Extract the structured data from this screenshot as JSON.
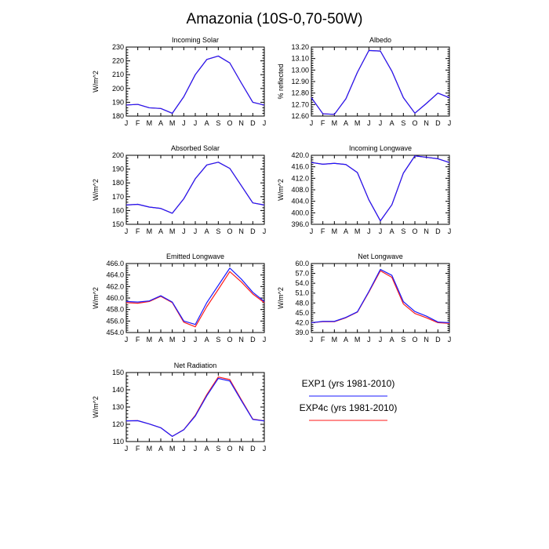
{
  "figure_title": "Amazonia (10S-0,70-50W)",
  "colors": {
    "exp1": "#1a1aff",
    "exp4c": "#ff1a1a",
    "axis": "#000000"
  },
  "legend": [
    {
      "label": "EXP1 (yrs 1981-2010)",
      "color": "#1a1aff"
    },
    {
      "label": "EXP4c (yrs 1981-2010)",
      "color": "#ff1a1a"
    }
  ],
  "chart_data": [
    {
      "type": "line",
      "title": "Incoming Solar",
      "ylabel": "W/m^2",
      "x": [
        "J",
        "F",
        "M",
        "A",
        "M",
        "J",
        "J",
        "A",
        "S",
        "O",
        "N",
        "D",
        "J"
      ],
      "ylim": [
        180,
        230
      ],
      "yticks": [
        "180",
        "190",
        "200",
        "210",
        "220",
        "230"
      ],
      "series": [
        {
          "name": "EXP1 (yrs 1981-2010)",
          "values": [
            188,
            188.5,
            186,
            185.5,
            182,
            194,
            210,
            221,
            223.5,
            218.5,
            204,
            190,
            188
          ]
        },
        {
          "name": "EXP4c (yrs 1981-2010)",
          "values": [
            188,
            188.5,
            186,
            185.5,
            182,
            194,
            210,
            221,
            223.5,
            218.5,
            204,
            190,
            188
          ]
        }
      ]
    },
    {
      "type": "line",
      "title": "Albedo",
      "ylabel": "% reflected",
      "x": [
        "J",
        "F",
        "M",
        "A",
        "M",
        "J",
        "J",
        "A",
        "S",
        "O",
        "N",
        "D",
        "J"
      ],
      "ylim": [
        12.6,
        13.2
      ],
      "yticks": [
        "12.60",
        "12.70",
        "12.80",
        "12.90",
        "13.00",
        "13.10",
        "13.20"
      ],
      "series": [
        {
          "name": "EXP1 (yrs 1981-2010)",
          "values": [
            12.76,
            12.62,
            12.615,
            12.75,
            12.98,
            13.17,
            13.165,
            12.99,
            12.76,
            12.625,
            12.71,
            12.8,
            12.76
          ]
        },
        {
          "name": "EXP4c (yrs 1981-2010)",
          "values": [
            12.76,
            12.62,
            12.615,
            12.75,
            12.98,
            13.17,
            13.165,
            12.99,
            12.76,
            12.625,
            12.71,
            12.8,
            12.76
          ]
        }
      ]
    },
    {
      "type": "line",
      "title": "Absorbed Solar",
      "ylabel": "W/m^2",
      "x": [
        "J",
        "F",
        "M",
        "A",
        "M",
        "J",
        "J",
        "A",
        "S",
        "O",
        "N",
        "D",
        "J"
      ],
      "ylim": [
        150,
        200
      ],
      "yticks": [
        "150",
        "160",
        "170",
        "180",
        "190",
        "200"
      ],
      "series": [
        {
          "name": "EXP1 (yrs 1981-2010)",
          "values": [
            164,
            164.5,
            162.5,
            161.5,
            158,
            168.5,
            183,
            193,
            195,
            190.5,
            178,
            165.5,
            164
          ]
        },
        {
          "name": "EXP4c (yrs 1981-2010)",
          "values": [
            164,
            164.5,
            162.5,
            161.5,
            158,
            168.5,
            183,
            193,
            195,
            190.5,
            178,
            165.5,
            164
          ]
        }
      ]
    },
    {
      "type": "line",
      "title": "Incoming Longwave",
      "ylabel": "W/m^2",
      "x": [
        "J",
        "F",
        "M",
        "A",
        "M",
        "J",
        "J",
        "A",
        "S",
        "O",
        "N",
        "D",
        "J"
      ],
      "ylim": [
        396,
        420
      ],
      "yticks": [
        "396.0",
        "400.0",
        "404.0",
        "408.0",
        "412.0",
        "416.0",
        "420.0"
      ],
      "series": [
        {
          "name": "EXP1 (yrs 1981-2010)",
          "values": [
            417.5,
            416.9,
            417.2,
            416.8,
            414.0,
            404.5,
            397.2,
            402.8,
            413.8,
            419.8,
            419.3,
            418.8,
            417.5
          ]
        },
        {
          "name": "EXP4c (yrs 1981-2010)",
          "values": [
            417.5,
            416.9,
            417.2,
            416.8,
            414.0,
            404.5,
            397.2,
            402.8,
            413.8,
            419.8,
            419.3,
            418.8,
            417.5
          ]
        }
      ]
    },
    {
      "type": "line",
      "title": "Emitted Longwave",
      "ylabel": "W/m^2",
      "x": [
        "J",
        "F",
        "M",
        "A",
        "M",
        "J",
        "J",
        "A",
        "S",
        "O",
        "N",
        "D",
        "J"
      ],
      "ylim": [
        454,
        466
      ],
      "yticks": [
        "454.0",
        "456.0",
        "458.0",
        "460.0",
        "462.0",
        "464.0",
        "466.0"
      ],
      "series": [
        {
          "name": "EXP1 (yrs 1981-2010)",
          "values": [
            459.4,
            459.3,
            459.5,
            460.4,
            459.3,
            456.0,
            455.4,
            459.2,
            462.2,
            465.2,
            463.3,
            461.0,
            459.4
          ]
        },
        {
          "name": "EXP4c (yrs 1981-2010)",
          "values": [
            459.2,
            459.1,
            459.4,
            460.3,
            459.2,
            455.8,
            455.0,
            458.5,
            461.5,
            464.6,
            462.8,
            460.7,
            459.2
          ]
        }
      ]
    },
    {
      "type": "line",
      "title": "Net Longwave",
      "ylabel": "W/m^2",
      "x": [
        "J",
        "F",
        "M",
        "A",
        "M",
        "J",
        "J",
        "A",
        "S",
        "O",
        "N",
        "D",
        "J"
      ],
      "ylim": [
        39,
        60
      ],
      "yticks": [
        "39.0",
        "42.0",
        "45.0",
        "48.0",
        "51.0",
        "54.0",
        "57.0",
        "60.0"
      ],
      "series": [
        {
          "name": "EXP1 (yrs 1981-2010)",
          "values": [
            42.0,
            42.4,
            42.4,
            43.6,
            45.3,
            51.5,
            58.2,
            56.4,
            48.4,
            45.4,
            44.0,
            42.2,
            42.0
          ]
        },
        {
          "name": "EXP4c (yrs 1981-2010)",
          "values": [
            42.0,
            42.3,
            42.3,
            43.5,
            45.2,
            51.3,
            57.8,
            55.8,
            47.7,
            44.8,
            43.5,
            42.0,
            41.8
          ]
        }
      ]
    },
    {
      "type": "line",
      "title": "Net Radiation",
      "ylabel": "W/m^2",
      "x": [
        "J",
        "F",
        "M",
        "A",
        "M",
        "J",
        "J",
        "A",
        "S",
        "O",
        "N",
        "D",
        "J"
      ],
      "ylim": [
        110,
        150
      ],
      "yticks": [
        "110",
        "120",
        "130",
        "140",
        "150"
      ],
      "series": [
        {
          "name": "EXP1 (yrs 1981-2010)",
          "values": [
            122,
            122.1,
            120.2,
            118,
            113,
            116.8,
            124.8,
            136.5,
            146.6,
            145.1,
            133.8,
            122.8,
            122
          ]
        },
        {
          "name": "EXP4c (yrs 1981-2010)",
          "values": [
            122,
            122.1,
            120.2,
            118,
            113,
            116.9,
            125.2,
            137.2,
            147.4,
            145.9,
            134.3,
            123.0,
            122
          ]
        }
      ]
    }
  ]
}
